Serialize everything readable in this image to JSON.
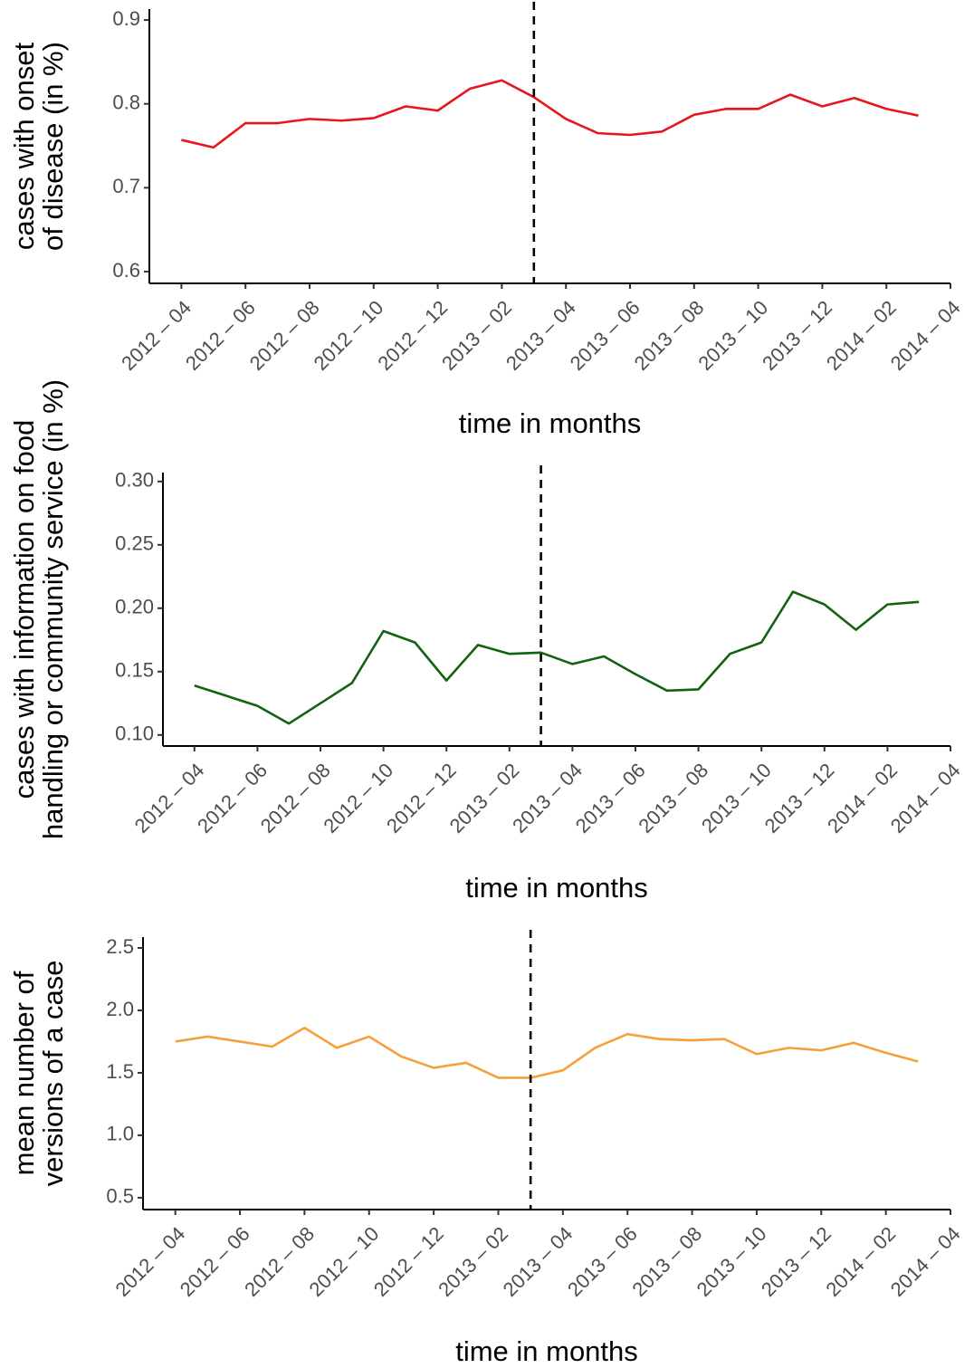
{
  "chart_data": [
    {
      "type": "line",
      "y_title": [
        "cases with onset",
        "of disease (in %)"
      ],
      "x_title": "time in months",
      "x": [
        "2012-04",
        "2012-05",
        "2012-06",
        "2012-07",
        "2012-08",
        "2012-09",
        "2012-10",
        "2012-11",
        "2012-12",
        "2013-01",
        "2013-02",
        "2013-03",
        "2013-04",
        "2013-05",
        "2013-06",
        "2013-07",
        "2013-08",
        "2013-09",
        "2013-10",
        "2013-11",
        "2013-12",
        "2014-01",
        "2014-02",
        "2014-03"
      ],
      "series": [
        {
          "color": "#e8151b",
          "values": [
            0.757,
            0.748,
            0.777,
            0.777,
            0.782,
            0.78,
            0.783,
            0.797,
            0.792,
            0.818,
            0.828,
            0.808,
            0.782,
            0.765,
            0.763,
            0.767,
            0.787,
            0.794,
            0.794,
            0.811,
            0.797,
            0.807,
            0.794,
            0.786
          ]
        }
      ],
      "vline": "2013-03",
      "xlim": [
        "2012-03",
        "2014-04"
      ],
      "xticks": [
        {
          "value": "2012-04",
          "label": "2012 – 04"
        },
        {
          "value": "2012-06",
          "label": "2012 – 06"
        },
        {
          "value": "2012-08",
          "label": "2012 – 08"
        },
        {
          "value": "2012-10",
          "label": "2012 – 10"
        },
        {
          "value": "2012-12",
          "label": "2012 – 12"
        },
        {
          "value": "2013-02",
          "label": "2013 – 02"
        },
        {
          "value": "2013-04",
          "label": "2013 – 04"
        },
        {
          "value": "2013-06",
          "label": "2013 – 06"
        },
        {
          "value": "2013-08",
          "label": "2013 – 08"
        },
        {
          "value": "2013-10",
          "label": "2013 – 10"
        },
        {
          "value": "2013-12",
          "label": "2013 – 12"
        },
        {
          "value": "2014-02",
          "label": "2014 – 02"
        },
        {
          "value": "2014-04",
          "label": "2014 – 04"
        }
      ],
      "ylim": [
        0.586,
        0.913
      ],
      "yticks": [
        0.6,
        0.7,
        0.8,
        0.9
      ]
    },
    {
      "type": "line",
      "y_title": [
        "cases with information on food",
        "handling or community service (in %)"
      ],
      "x_title": "time in months",
      "x": [
        "2012-04",
        "2012-05",
        "2012-06",
        "2012-07",
        "2012-08",
        "2012-09",
        "2012-10",
        "2012-11",
        "2012-12",
        "2013-01",
        "2013-02",
        "2013-03",
        "2013-04",
        "2013-05",
        "2013-06",
        "2013-07",
        "2013-08",
        "2013-09",
        "2013-10",
        "2013-11",
        "2013-12",
        "2014-01",
        "2014-02",
        "2014-03"
      ],
      "series": [
        {
          "color": "#116311",
          "values": [
            0.139,
            0.131,
            0.123,
            0.109,
            0.125,
            0.141,
            0.182,
            0.173,
            0.143,
            0.171,
            0.164,
            0.165,
            0.156,
            0.162,
            0.148,
            0.135,
            0.136,
            0.164,
            0.173,
            0.213,
            0.203,
            0.183,
            0.203,
            0.205
          ]
        }
      ],
      "vline": "2013-03",
      "xlim": [
        "2012-03",
        "2014-04"
      ],
      "xticks": [
        {
          "value": "2012-04",
          "label": "2012 – 04"
        },
        {
          "value": "2012-06",
          "label": "2012 – 06"
        },
        {
          "value": "2012-08",
          "label": "2012 – 08"
        },
        {
          "value": "2012-10",
          "label": "2012 – 10"
        },
        {
          "value": "2012-12",
          "label": "2012 – 12"
        },
        {
          "value": "2013-02",
          "label": "2013 – 02"
        },
        {
          "value": "2013-04",
          "label": "2013 – 04"
        },
        {
          "value": "2013-06",
          "label": "2013 – 06"
        },
        {
          "value": "2013-08",
          "label": "2013 – 08"
        },
        {
          "value": "2013-10",
          "label": "2013 – 10"
        },
        {
          "value": "2013-12",
          "label": "2013 – 12"
        },
        {
          "value": "2014-02",
          "label": "2014 – 02"
        },
        {
          "value": "2014-04",
          "label": "2014 – 04"
        }
      ],
      "ylim": [
        0.0913,
        0.307
      ],
      "yticks": [
        {
          "value": 0.1,
          "label": "0.10"
        },
        {
          "value": 0.15,
          "label": "0.15"
        },
        {
          "value": 0.2,
          "label": "0.20"
        },
        {
          "value": 0.25,
          "label": "0.25"
        },
        {
          "value": 0.3,
          "label": "0.30"
        }
      ]
    },
    {
      "type": "line",
      "y_title": [
        "mean number of",
        "versions of a case"
      ],
      "x_title": "time in months",
      "x": [
        "2012-04",
        "2012-05",
        "2012-06",
        "2012-07",
        "2012-08",
        "2012-09",
        "2012-10",
        "2012-11",
        "2012-12",
        "2013-01",
        "2013-02",
        "2013-03",
        "2013-04",
        "2013-05",
        "2013-06",
        "2013-07",
        "2013-08",
        "2013-09",
        "2013-10",
        "2013-11",
        "2013-12",
        "2014-01",
        "2014-02",
        "2014-03"
      ],
      "series": [
        {
          "color": "#f5a03a",
          "values": [
            1.75,
            1.79,
            1.75,
            1.71,
            1.86,
            1.7,
            1.79,
            1.63,
            1.54,
            1.58,
            1.46,
            1.46,
            1.52,
            1.7,
            1.81,
            1.77,
            1.76,
            1.77,
            1.65,
            1.7,
            1.68,
            1.74,
            1.66,
            1.59
          ]
        }
      ],
      "vline": "2013-03",
      "xlim": [
        "2012-03",
        "2014-04"
      ],
      "xticks": [
        {
          "value": "2012-04",
          "label": "2012 – 04"
        },
        {
          "value": "2012-06",
          "label": "2012 – 06"
        },
        {
          "value": "2012-08",
          "label": "2012 – 08"
        },
        {
          "value": "2012-10",
          "label": "2012 – 10"
        },
        {
          "value": "2012-12",
          "label": "2012 – 12"
        },
        {
          "value": "2013-02",
          "label": "2013 – 02"
        },
        {
          "value": "2013-04",
          "label": "2013 – 04"
        },
        {
          "value": "2013-06",
          "label": "2013 – 06"
        },
        {
          "value": "2013-08",
          "label": "2013 – 08"
        },
        {
          "value": "2013-10",
          "label": "2013 – 10"
        },
        {
          "value": "2013-12",
          "label": "2013 – 12"
        },
        {
          "value": "2014-02",
          "label": "2014 – 02"
        },
        {
          "value": "2014-04",
          "label": "2014 – 04"
        }
      ],
      "ylim": [
        0.405,
        2.587
      ],
      "yticks": [
        0.5,
        {
          "value": 1.0,
          "label": "1.0"
        },
        1.5,
        {
          "value": 2.0,
          "label": "2.0"
        },
        2.5
      ]
    }
  ]
}
